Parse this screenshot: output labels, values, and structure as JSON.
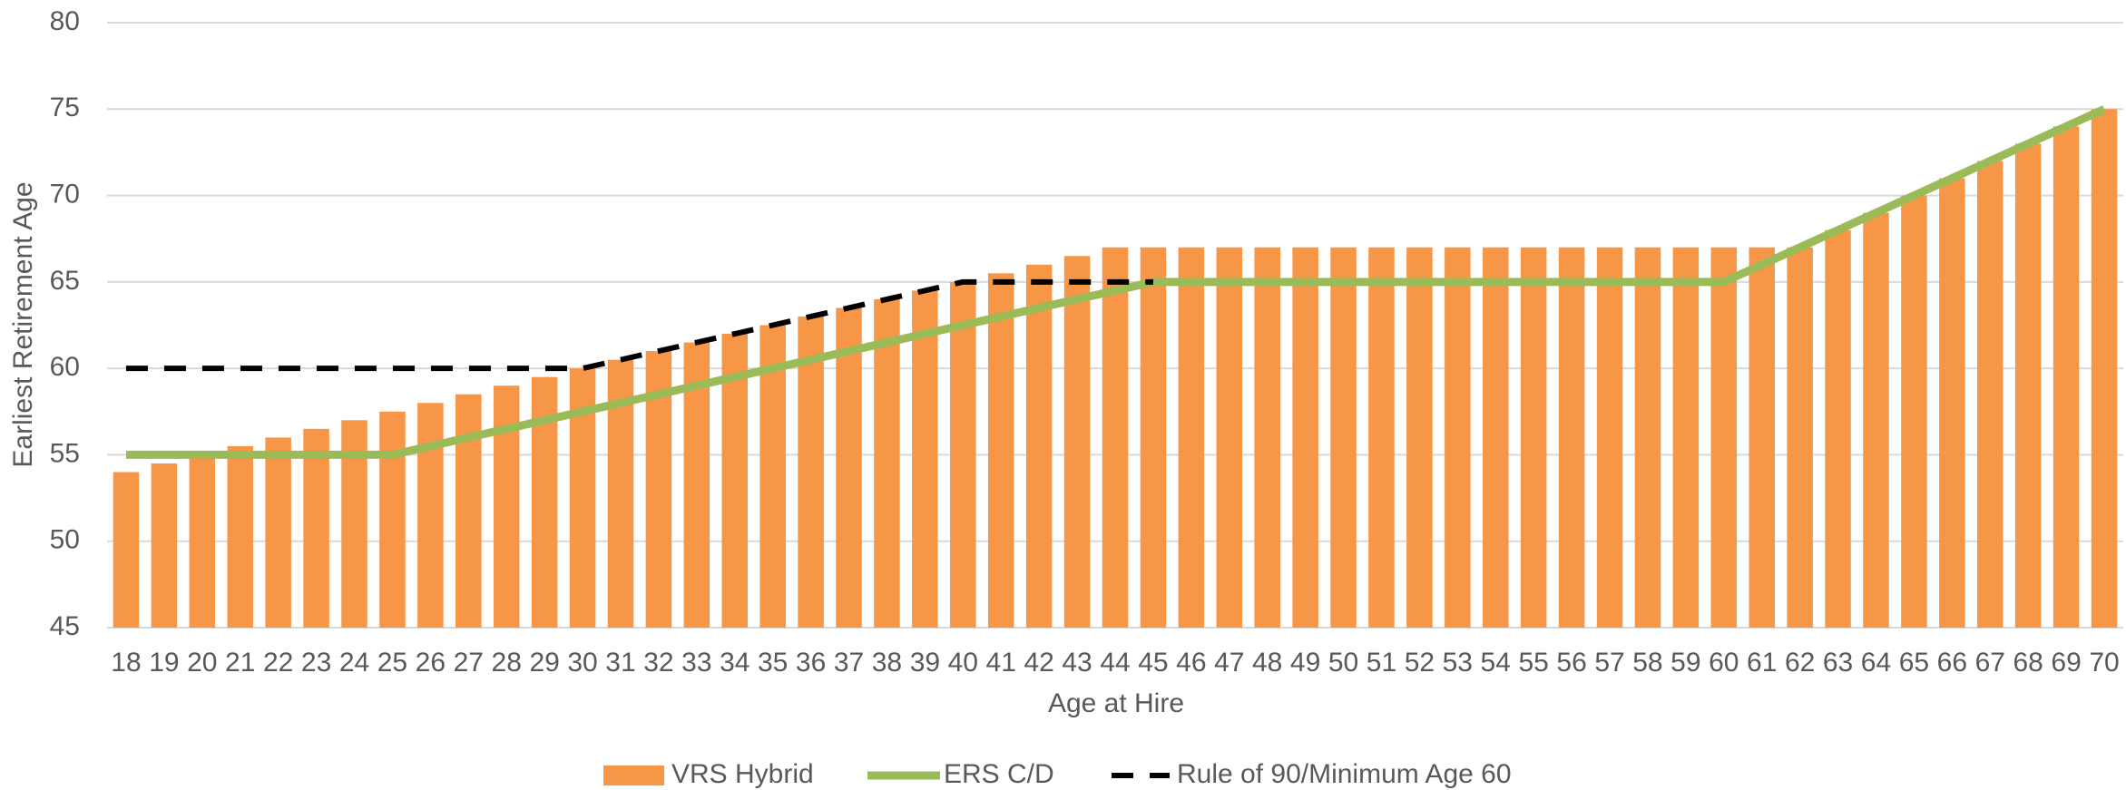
{
  "chart_data": {
    "type": "bar_line",
    "x_label": "Age at Hire",
    "y_label": "Earliest Retirement Age",
    "categories": [
      "18",
      "19",
      "20",
      "21",
      "22",
      "23",
      "24",
      "25",
      "26",
      "27",
      "28",
      "29",
      "30",
      "31",
      "32",
      "33",
      "34",
      "35",
      "36",
      "37",
      "38",
      "39",
      "40",
      "41",
      "42",
      "43",
      "44",
      "45",
      "46",
      "47",
      "48",
      "49",
      "50",
      "51",
      "52",
      "53",
      "54",
      "55",
      "56",
      "57",
      "58",
      "59",
      "60",
      "61",
      "62",
      "63",
      "64",
      "65",
      "66",
      "67",
      "68",
      "69",
      "70"
    ],
    "series": [
      {
        "name": "VRS Hybrid",
        "type": "bar",
        "color": "#f79646",
        "values": [
          54,
          54.5,
          55,
          55.5,
          56,
          56.5,
          57,
          57.5,
          58,
          58.5,
          59,
          59.5,
          60,
          60.5,
          61,
          61.5,
          62,
          62.5,
          63,
          63.5,
          64,
          64.5,
          65,
          65.5,
          66,
          66.5,
          67,
          67,
          67,
          67,
          67,
          67,
          67,
          67,
          67,
          67,
          67,
          67,
          67,
          67,
          67,
          67,
          67,
          67,
          67,
          68,
          69,
          70,
          71,
          72,
          73,
          74,
          75
        ]
      },
      {
        "name": "ERS C/D",
        "type": "line",
        "color": "#9bbb59",
        "values": [
          55,
          55,
          55,
          55,
          55,
          55,
          55,
          55,
          55.5,
          56,
          56.5,
          57,
          57.5,
          58,
          58.5,
          59,
          59.5,
          60,
          60.5,
          61,
          61.5,
          62,
          62.5,
          63,
          63.5,
          64,
          64.5,
          65,
          65,
          65,
          65,
          65,
          65,
          65,
          65,
          65,
          65,
          65,
          65,
          65,
          65,
          65,
          65,
          66,
          67,
          68,
          69,
          70,
          71,
          72,
          73,
          74,
          75
        ]
      },
      {
        "name": "Rule of 90/Minimum Age 60",
        "type": "dashed-line",
        "color": "#000000",
        "values": [
          60,
          60,
          60,
          60,
          60,
          60,
          60,
          60,
          60,
          60,
          60,
          60,
          60,
          60.5,
          61,
          61.5,
          62,
          62.5,
          63,
          63.5,
          64,
          64.5,
          65,
          65,
          65,
          65,
          65,
          65,
          null,
          null,
          null,
          null,
          null,
          null,
          null,
          null,
          null,
          null,
          null,
          null,
          null,
          null,
          null,
          null,
          null,
          null,
          null,
          null,
          null,
          null,
          null,
          null,
          null
        ]
      }
    ],
    "ylim": [
      45,
      80
    ],
    "yticks": [
      45,
      50,
      55,
      60,
      65,
      70,
      75,
      80
    ],
    "grid": true,
    "legend": "bottom"
  }
}
